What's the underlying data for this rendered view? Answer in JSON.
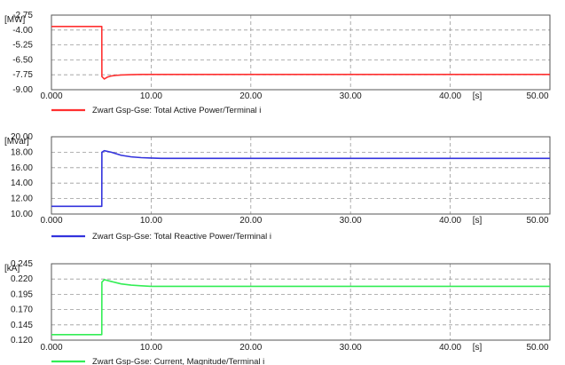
{
  "chart_data": [
    {
      "type": "line",
      "unit_label": "[MW]",
      "x_unit_label": "[s]",
      "xlim": [
        0,
        50
      ],
      "x_ticks": [
        "0.000",
        "10.00",
        "20.00",
        "30.00",
        "40.00",
        "50.00"
      ],
      "ylim": [
        -9.0,
        -2.75
      ],
      "y_ticks": [
        "-2.75",
        "-4.00",
        "-5.25",
        "-6.50",
        "-7.75",
        "-9.00"
      ],
      "color": "#ff3030",
      "series": [
        {
          "name": "Zwart Gsp-Gse: Total Active Power/Terminal i",
          "x": [
            0,
            5.05,
            5.06,
            5.3,
            5.6,
            6.0,
            6.5,
            7.0,
            8.0,
            9.0,
            10.0,
            12.0,
            15.0,
            20.0,
            30.0,
            40.0,
            50.0
          ],
          "y": [
            -3.7,
            -3.7,
            -7.9,
            -8.1,
            -7.95,
            -7.85,
            -7.8,
            -7.77,
            -7.74,
            -7.72,
            -7.72,
            -7.72,
            -7.72,
            -7.72,
            -7.72,
            -7.72,
            -7.72
          ]
        }
      ]
    },
    {
      "type": "line",
      "unit_label": "[Mvar]",
      "x_unit_label": "[s]",
      "xlim": [
        0,
        50
      ],
      "x_ticks": [
        "0.000",
        "10.00",
        "20.00",
        "30.00",
        "40.00",
        "50.00"
      ],
      "ylim": [
        10.0,
        20.0
      ],
      "y_ticks": [
        "20.00",
        "18.00",
        "16.00",
        "14.00",
        "12.00",
        "10.00"
      ],
      "color": "#3333dd",
      "series": [
        {
          "name": "Zwart Gsp-Gse: Total Reactive Power/Terminal i",
          "x": [
            0,
            5.05,
            5.06,
            5.3,
            6.0,
            6.5,
            7.0,
            8.0,
            9.0,
            10.0,
            11.0,
            12.0,
            15.0,
            20.0,
            30.0,
            40.0,
            50.0
          ],
          "y": [
            11.0,
            11.0,
            18.0,
            18.2,
            18.0,
            17.8,
            17.6,
            17.4,
            17.3,
            17.25,
            17.2,
            17.2,
            17.2,
            17.2,
            17.2,
            17.2,
            17.2
          ]
        }
      ]
    },
    {
      "type": "line",
      "unit_label": "[kA]",
      "x_unit_label": "[s]",
      "xlim": [
        0,
        50
      ],
      "x_ticks": [
        "0.000",
        "10.00",
        "20.00",
        "30.00",
        "40.00",
        "50.00"
      ],
      "ylim": [
        0.12,
        0.245
      ],
      "y_ticks": [
        "0.245",
        "0.220",
        "0.195",
        "0.170",
        "0.145",
        "0.120"
      ],
      "color": "#33ee55",
      "series": [
        {
          "name": "Zwart Gsp-Gse: Current, Magnitude/Terminal i",
          "x": [
            0,
            5.05,
            5.06,
            5.3,
            6.0,
            6.5,
            7.0,
            8.0,
            9.0,
            10.0,
            11.0,
            12.0,
            15.0,
            20.0,
            30.0,
            40.0,
            50.0
          ],
          "y": [
            0.129,
            0.129,
            0.215,
            0.219,
            0.216,
            0.214,
            0.212,
            0.21,
            0.209,
            0.208,
            0.208,
            0.208,
            0.208,
            0.208,
            0.208,
            0.208,
            0.208
          ]
        }
      ]
    }
  ]
}
